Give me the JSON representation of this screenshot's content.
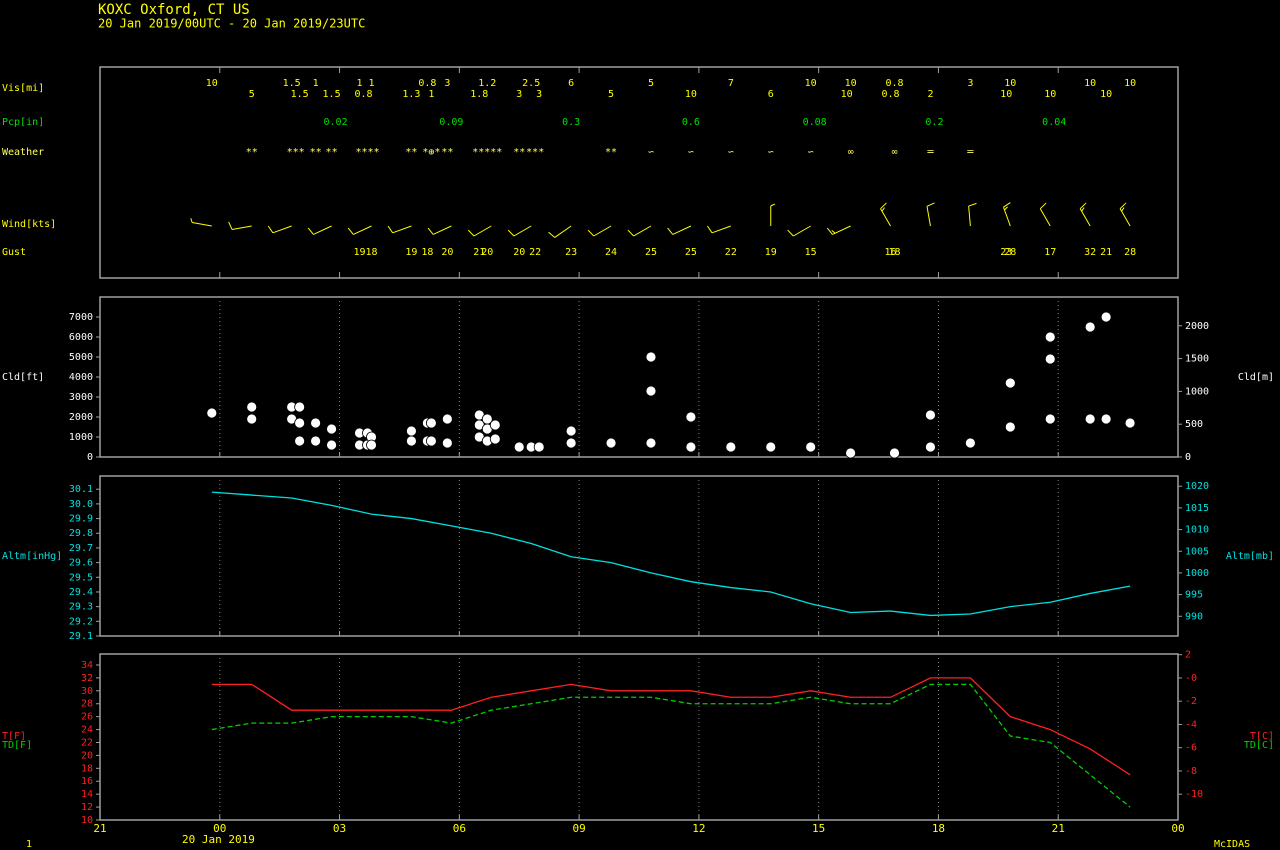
{
  "footer": {
    "page": "1",
    "date": "20 Jan 2019",
    "credit": "McIDAS"
  },
  "chart_data": [
    {
      "type": "obs",
      "title": "KOXC  Oxford, CT US",
      "subtitle": "20 Jan 2019/00UTC - 20 Jan 2019/23UTC",
      "vis": {
        "label": "Vis[mi]",
        "color": "#ffff00",
        "x": [
          -0.2,
          0.8,
          1.8,
          2.0,
          2.4,
          2.8,
          3.5,
          3.6,
          3.8,
          4.8,
          5.2,
          5.3,
          5.7,
          6.5,
          6.7,
          7.5,
          7.8,
          8.0,
          8.8,
          9.8,
          10.8,
          11.8,
          12.8,
          13.8,
          14.8,
          15.7,
          15.8,
          16.8,
          16.9,
          17.8,
          18.8,
          19.7,
          19.8,
          20.8,
          21.8,
          22.2,
          22.8
        ],
        "values": [
          10,
          5,
          1.5,
          1.5,
          1,
          1.5,
          1,
          0.8,
          1,
          1.3,
          0.8,
          1,
          3,
          1.8,
          1.2,
          3,
          2.5,
          3,
          6,
          5,
          5,
          10,
          7,
          6,
          10,
          10,
          10,
          0.8,
          0.8,
          2,
          3,
          10,
          10,
          10,
          10,
          10,
          10
        ]
      },
      "pcp": {
        "label": "Pcp[in]",
        "color": "#00e000",
        "x": [
          2.9,
          5.8,
          8.8,
          11.8,
          14.9,
          17.9,
          20.9
        ],
        "values": [
          0.02,
          0.09,
          0.3,
          0.6,
          0.08,
          0.2,
          0.04
        ]
      },
      "weather": {
        "label": "Weather",
        "color": "#ffff60",
        "x": [
          0.8,
          1.9,
          2.4,
          2.8,
          3.7,
          4.8,
          5.3,
          5.7,
          6.7,
          7.5,
          7.9,
          9.8,
          10.8,
          11.8,
          12.8,
          13.8,
          14.8,
          15.8,
          16.9,
          17.8,
          18.8
        ],
        "values": [
          "**",
          "***",
          "**",
          "**",
          "****",
          "**",
          "*⊕*",
          "**",
          "*****",
          "**",
          "***",
          "**",
          "∽",
          "∽",
          "∽",
          "∽",
          "∽",
          "∞",
          "∞",
          "═",
          "═"
        ]
      },
      "wind": {
        "label": "Wind[kts]",
        "color": "#ffff00",
        "x": [
          -0.2,
          0.8,
          1.8,
          2.8,
          3.8,
          4.8,
          5.8,
          6.8,
          7.8,
          8.8,
          9.8,
          10.8,
          11.8,
          12.8,
          13.8,
          14.8,
          15.8,
          16.8,
          17.8,
          18.8,
          19.8,
          20.8,
          21.8,
          22.8
        ],
        "direction": [
          280,
          260,
          250,
          245,
          245,
          250,
          245,
          240,
          240,
          235,
          240,
          240,
          245,
          250,
          0,
          240,
          245,
          330,
          350,
          355,
          340,
          330,
          330,
          330
        ],
        "speed": [
          5,
          10,
          10,
          10,
          10,
          10,
          10,
          10,
          10,
          10,
          10,
          10,
          10,
          10,
          5,
          10,
          15,
          15,
          10,
          10,
          15,
          10,
          15,
          15
        ]
      },
      "gust": {
        "label": "Gust",
        "color": "#ffff00",
        "x": [
          3.5,
          3.8,
          4.8,
          5.2,
          5.7,
          6.5,
          6.7,
          7.5,
          7.9,
          8.8,
          9.8,
          10.8,
          11.8,
          12.8,
          13.8,
          14.8,
          16.8,
          16.9,
          19.7,
          19.8,
          20.8,
          21.8,
          22.2,
          22.8
        ],
        "values": [
          19,
          18,
          19,
          18,
          20,
          21,
          20,
          20,
          22,
          23,
          24,
          25,
          25,
          22,
          19,
          15,
          16,
          18,
          23,
          28,
          17,
          32,
          21,
          28
        ]
      }
    },
    {
      "type": "scatter",
      "ylabel": "Cld[ft]",
      "y2label": "Cld[m]",
      "color": "#ffffff",
      "x": [
        -0.2,
        0.8,
        0.8,
        1.8,
        2.0,
        1.8,
        2.0,
        2.0,
        2.4,
        2.4,
        2.8,
        2.8,
        3.5,
        3.7,
        3.5,
        3.7,
        3.8,
        3.8,
        4.8,
        4.8,
        5.2,
        5.3,
        5.2,
        5.3,
        5.7,
        5.7,
        6.5,
        6.5,
        6.5,
        6.7,
        6.7,
        6.7,
        6.9,
        6.9,
        7.5,
        7.8,
        8.0,
        8.8,
        8.8,
        9.8,
        10.8,
        10.8,
        10.8,
        11.8,
        11.8,
        12.8,
        13.8,
        14.8,
        15.8,
        16.9,
        17.8,
        17.8,
        18.8,
        19.8,
        19.8,
        20.8,
        20.8,
        20.8,
        21.8,
        21.8,
        22.2,
        22.2,
        22.8
      ],
      "values": [
        2200,
        2500,
        1900,
        2500,
        2500,
        1900,
        1700,
        800,
        1700,
        800,
        1400,
        600,
        1200,
        1200,
        600,
        600,
        1000,
        600,
        1300,
        800,
        1700,
        1700,
        800,
        800,
        1900,
        700,
        2100,
        1600,
        1000,
        1900,
        1400,
        800,
        1600,
        900,
        500,
        500,
        500,
        1300,
        700,
        700,
        5000,
        3300,
        700,
        2000,
        500,
        500,
        500,
        500,
        200,
        200,
        2100,
        500,
        700,
        3700,
        1500,
        6000,
        4900,
        1900,
        6500,
        1900,
        7000,
        1900,
        1700
      ],
      "ylim": [
        0,
        8000
      ],
      "yticks": [
        0,
        1000,
        2000,
        3000,
        4000,
        5000,
        6000,
        7000
      ],
      "y2lim": [
        0,
        2438.4
      ],
      "y2ticks": [
        0,
        500,
        1000,
        1500,
        2000
      ],
      "tick_color": "#ffffff"
    },
    {
      "type": "line",
      "ylabel": "Altm[inHg]",
      "y2label": "Altm[mb]",
      "color": "#00e0e0",
      "x": [
        -0.2,
        0.8,
        1.8,
        2.8,
        3.8,
        4.8,
        5.8,
        6.8,
        7.8,
        8.8,
        9.8,
        10.8,
        11.8,
        12.8,
        13.8,
        14.8,
        15.8,
        16.8,
        17.8,
        18.8,
        19.8,
        20.8,
        21.8,
        22.8
      ],
      "values": [
        30.08,
        30.06,
        30.04,
        29.99,
        29.93,
        29.9,
        29.85,
        29.8,
        29.73,
        29.64,
        29.6,
        29.53,
        29.47,
        29.43,
        29.4,
        29.32,
        29.26,
        29.27,
        29.24,
        29.25,
        29.3,
        29.33,
        29.39,
        29.44
      ],
      "ylim": [
        29.1,
        30.19
      ],
      "yticks": [
        29.1,
        29.2,
        29.3,
        29.4,
        29.5,
        29.6,
        29.7,
        29.8,
        29.9,
        {
          "value": 30.0,
          "label": "30.0"
        },
        30.1
      ],
      "y2lim": [
        985.45,
        1022.36
      ],
      "y2ticks": [
        990,
        995,
        1000,
        1005,
        1010,
        1015,
        1020
      ],
      "tick_color": "#00e0e0"
    },
    {
      "type": "line",
      "tick_color": "#ff2020",
      "x": [
        -0.2,
        0.8,
        1.8,
        2.8,
        3.8,
        4.8,
        5.8,
        6.8,
        7.8,
        8.8,
        9.8,
        10.8,
        11.8,
        12.8,
        13.8,
        14.8,
        15.8,
        16.8,
        17.8,
        18.8,
        19.8,
        20.8,
        21.8,
        22.8
      ],
      "series": [
        {
          "name": "T[F]",
          "name2": "T[C]",
          "color": "#ff2020",
          "dash": false,
          "values": [
            31,
            31,
            27,
            27,
            27,
            27,
            27,
            29,
            30,
            31,
            30,
            30,
            30,
            29,
            29,
            30,
            29,
            29,
            32,
            32,
            26,
            24,
            21,
            17
          ]
        },
        {
          "name": "TD[F]",
          "name2": "TD[C]",
          "color": "#00d000",
          "dash": true,
          "values": [
            24,
            25,
            25,
            26,
            26,
            26,
            25,
            27,
            28,
            29,
            29,
            29,
            28,
            28,
            28,
            29,
            28,
            28,
            31,
            31,
            23,
            22,
            17,
            12
          ]
        }
      ],
      "ylim": [
        10,
        35.7
      ],
      "yticks": [
        10,
        12,
        14,
        16,
        18,
        20,
        22,
        24,
        26,
        28,
        30,
        32,
        34
      ],
      "y2lim": [
        -12.22,
        2.06
      ],
      "y2ticks": [
        -10,
        -8,
        -6,
        -4,
        -2,
        {
          "value": 0,
          "label": "-0"
        },
        2
      ],
      "xlim": [
        -3,
        24
      ],
      "xticks": [
        {
          "value": -3,
          "label": "21"
        },
        {
          "value": 0,
          "label": "00"
        },
        {
          "value": 3,
          "label": "03"
        },
        {
          "value": 6,
          "label": "06"
        },
        {
          "value": 9,
          "label": "09"
        },
        12,
        15,
        18,
        21,
        {
          "value": 24,
          "label": "00"
        }
      ]
    }
  ]
}
